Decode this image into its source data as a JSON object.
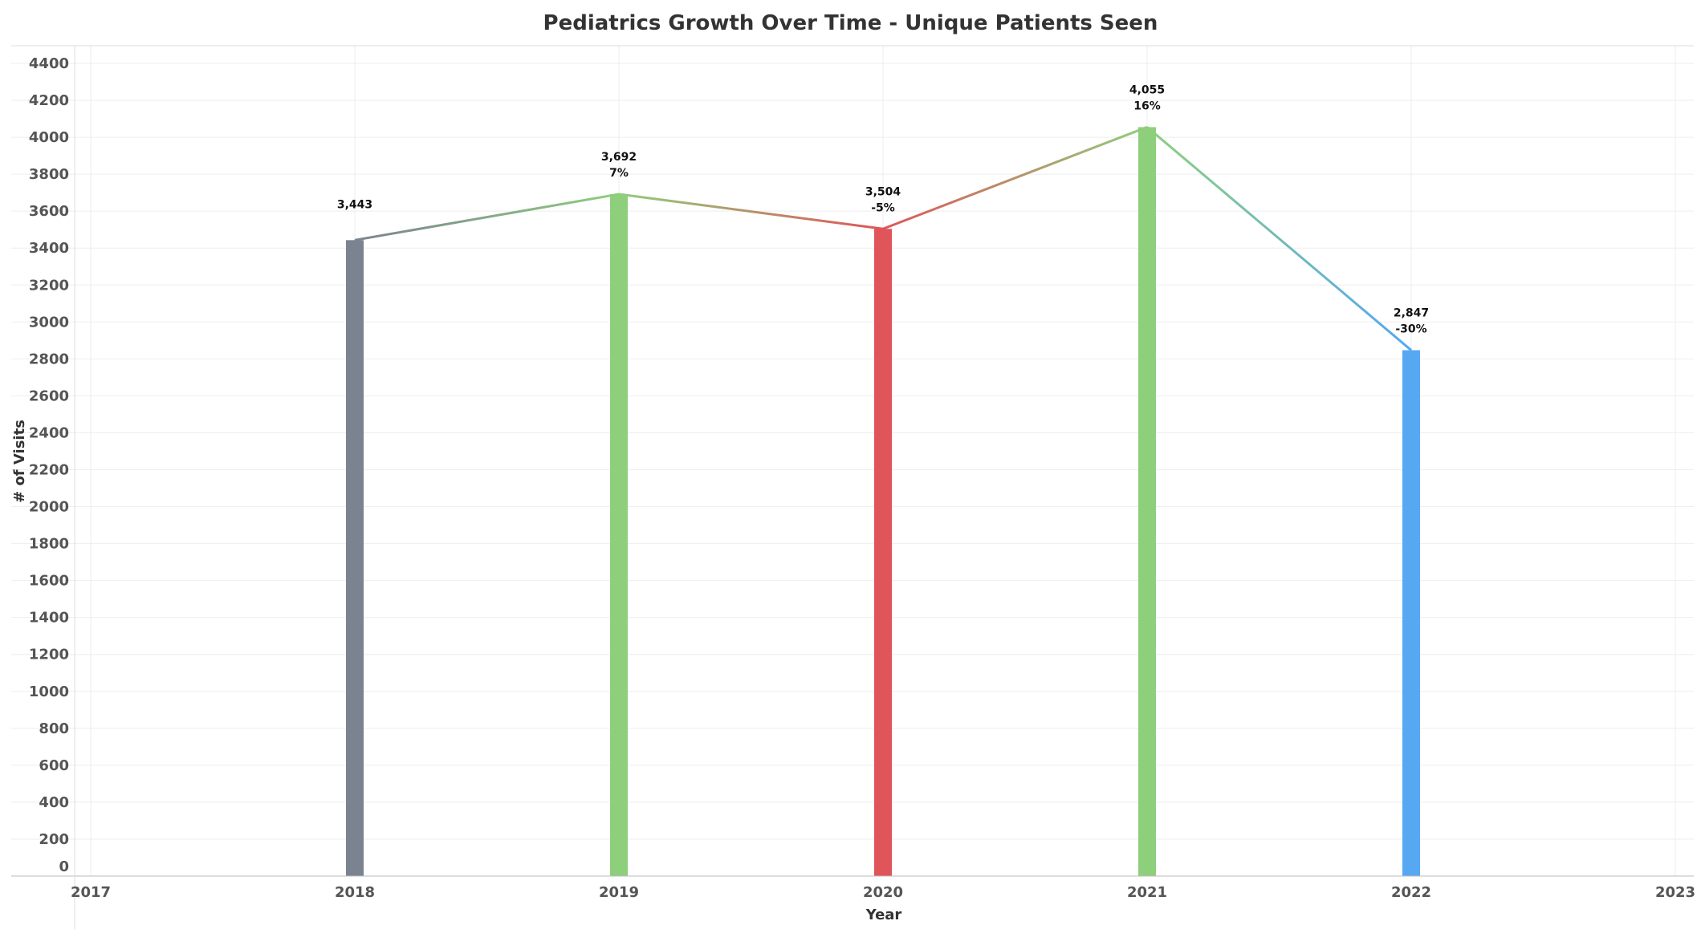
{
  "chart_data": {
    "type": "bar",
    "title": "Pediatrics Growth Over Time - Unique Patients Seen",
    "xlabel": "Year",
    "ylabel": "# of Visits",
    "x_ticks": [
      "2017",
      "2018",
      "2019",
      "2020",
      "2021",
      "2022",
      "2023"
    ],
    "xlim": [
      2017,
      2023
    ],
    "ylim": [
      0,
      4400
    ],
    "y_ticks": [
      0,
      200,
      400,
      600,
      800,
      1000,
      1200,
      1400,
      1600,
      1800,
      2000,
      2200,
      2400,
      2600,
      2800,
      3000,
      3200,
      3400,
      3600,
      3800,
      4000,
      4200,
      4400
    ],
    "grid": true,
    "categories": [
      "2018",
      "2019",
      "2020",
      "2021",
      "2022"
    ],
    "values": [
      3443,
      3692,
      3504,
      4055,
      2847
    ],
    "value_labels": [
      "3,443",
      "3,692",
      "3,504",
      "4,055",
      "2,847"
    ],
    "pct_change_labels": [
      "",
      "7%",
      "-5%",
      "16%",
      "-30%"
    ],
    "bar_colors": [
      "#7b8391",
      "#8ecf7c",
      "#e05559",
      "#8ecf7c",
      "#56a8f2"
    ],
    "line_overlay": true
  }
}
